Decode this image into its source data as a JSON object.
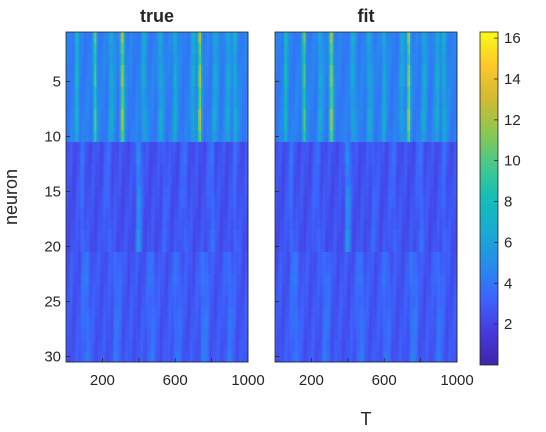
{
  "chart_data": {
    "type": "heatmap",
    "colormap": "parula",
    "color_range": [
      0,
      16.3
    ],
    "colorbar": {
      "ticks": [
        2,
        4,
        6,
        8,
        10,
        12,
        14,
        16
      ],
      "tick_labels": [
        "2",
        "4",
        "6",
        "8",
        "10",
        "12",
        "14",
        "16"
      ]
    },
    "xlabel": "T",
    "ylabel": "neuron",
    "xlim": [
      0,
      1000
    ],
    "ylim": [
      0.5,
      30.5
    ],
    "x_ticks": [
      200,
      600,
      1000
    ],
    "x_tick_labels": [
      "200",
      "600",
      "1000"
    ],
    "y_ticks": [
      5,
      10,
      15,
      20,
      25,
      30
    ],
    "y_tick_labels": [
      "5",
      "10",
      "15",
      "20",
      "25",
      "30"
    ],
    "neurons": 30,
    "groups": [
      {
        "rows": [
          1,
          10
        ],
        "base": 4.3
      },
      {
        "rows": [
          11,
          20
        ],
        "base": 2.5
      },
      {
        "rows": [
          21,
          30
        ],
        "base": 2.7
      }
    ],
    "panels": [
      {
        "title": "true",
        "stripes": [
          {
            "group": 1,
            "t": 60,
            "width": 8,
            "peak": 3.5
          },
          {
            "group": 1,
            "t": 160,
            "width": 6,
            "peak": 7
          },
          {
            "group": 1,
            "t": 250,
            "width": 10,
            "peak": 2.5
          },
          {
            "group": 1,
            "t": 310,
            "width": 7,
            "peak": 9
          },
          {
            "group": 1,
            "t": 430,
            "width": 10,
            "peak": 2.5
          },
          {
            "group": 1,
            "t": 520,
            "width": 10,
            "peak": 2.5
          },
          {
            "group": 1,
            "t": 600,
            "width": 10,
            "peak": 2.5
          },
          {
            "group": 1,
            "t": 700,
            "width": 10,
            "peak": 2.5
          },
          {
            "group": 1,
            "t": 735,
            "width": 6,
            "peak": 9.5
          },
          {
            "group": 1,
            "t": 820,
            "width": 10,
            "peak": 2.5
          },
          {
            "group": 1,
            "t": 890,
            "width": 10,
            "peak": 2.5
          },
          {
            "group": 1,
            "t": 930,
            "width": 10,
            "peak": 2.5
          },
          {
            "group": 2,
            "t": 90,
            "width": 12,
            "peak": 1.2
          },
          {
            "group": 2,
            "t": 230,
            "width": 14,
            "peak": 1.0
          },
          {
            "group": 2,
            "t": 400,
            "width": 10,
            "peak": 3.2
          },
          {
            "group": 2,
            "t": 545,
            "width": 14,
            "peak": 0.8
          },
          {
            "group": 2,
            "t": 650,
            "width": 14,
            "peak": 1.0
          },
          {
            "group": 2,
            "t": 800,
            "width": 12,
            "peak": 1.4
          },
          {
            "group": 2,
            "t": 930,
            "width": 12,
            "peak": 1.0
          },
          {
            "group": 3,
            "t": 110,
            "width": 16,
            "peak": 1.5
          },
          {
            "group": 3,
            "t": 280,
            "width": 16,
            "peak": 1.3
          },
          {
            "group": 3,
            "t": 470,
            "width": 16,
            "peak": 1.4
          },
          {
            "group": 3,
            "t": 610,
            "width": 16,
            "peak": 1.2
          },
          {
            "group": 3,
            "t": 760,
            "width": 16,
            "peak": 1.6
          },
          {
            "group": 3,
            "t": 900,
            "width": 16,
            "peak": 1.3
          }
        ]
      },
      {
        "title": "fit",
        "stripes": [
          {
            "group": 1,
            "t": 60,
            "width": 8,
            "peak": 3.5
          },
          {
            "group": 1,
            "t": 160,
            "width": 6,
            "peak": 7
          },
          {
            "group": 1,
            "t": 250,
            "width": 10,
            "peak": 2.5
          },
          {
            "group": 1,
            "t": 310,
            "width": 7,
            "peak": 9
          },
          {
            "group": 1,
            "t": 430,
            "width": 10,
            "peak": 2.5
          },
          {
            "group": 1,
            "t": 520,
            "width": 10,
            "peak": 2.5
          },
          {
            "group": 1,
            "t": 600,
            "width": 10,
            "peak": 2.5
          },
          {
            "group": 1,
            "t": 700,
            "width": 10,
            "peak": 2.5
          },
          {
            "group": 1,
            "t": 735,
            "width": 6,
            "peak": 9.5
          },
          {
            "group": 1,
            "t": 820,
            "width": 10,
            "peak": 2.5
          },
          {
            "group": 1,
            "t": 890,
            "width": 10,
            "peak": 2.5
          },
          {
            "group": 1,
            "t": 930,
            "width": 10,
            "peak": 2.5
          },
          {
            "group": 2,
            "t": 90,
            "width": 12,
            "peak": 1.2
          },
          {
            "group": 2,
            "t": 230,
            "width": 14,
            "peak": 1.0
          },
          {
            "group": 2,
            "t": 400,
            "width": 10,
            "peak": 3.2
          },
          {
            "group": 2,
            "t": 545,
            "width": 14,
            "peak": 0.8
          },
          {
            "group": 2,
            "t": 650,
            "width": 14,
            "peak": 1.0
          },
          {
            "group": 2,
            "t": 800,
            "width": 12,
            "peak": 1.4
          },
          {
            "group": 2,
            "t": 930,
            "width": 12,
            "peak": 1.0
          },
          {
            "group": 3,
            "t": 110,
            "width": 16,
            "peak": 1.5
          },
          {
            "group": 3,
            "t": 280,
            "width": 16,
            "peak": 1.3
          },
          {
            "group": 3,
            "t": 470,
            "width": 16,
            "peak": 1.4
          },
          {
            "group": 3,
            "t": 610,
            "width": 16,
            "peak": 1.2
          },
          {
            "group": 3,
            "t": 760,
            "width": 16,
            "peak": 1.6
          },
          {
            "group": 3,
            "t": 900,
            "width": 16,
            "peak": 1.3
          }
        ]
      }
    ]
  }
}
